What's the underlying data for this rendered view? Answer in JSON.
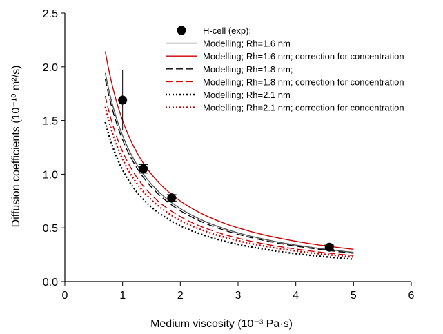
{
  "chart_data": {
    "type": "scatter",
    "xlabel": "Medium viscosity (10⁻³ Pa·s)",
    "ylabel": "Diffusion coefficients (10⁻¹⁰ m²/s)",
    "xlim": [
      0,
      6
    ],
    "ylim": [
      0,
      2.5
    ],
    "xticks": [
      "0",
      "1",
      "2",
      "3",
      "4",
      "5",
      "6"
    ],
    "yticks": [
      "0.0",
      "0.5",
      "1.0",
      "1.5",
      "2.0",
      "2.5"
    ],
    "grid": false,
    "legend_position": "top-right",
    "series": [
      {
        "name": "H-cell (exp);",
        "kind": "points",
        "color": "#000000",
        "x": [
          1.0,
          1.36,
          1.85,
          4.58
        ],
        "y": [
          1.69,
          1.05,
          0.78,
          0.32
        ],
        "yerr": [
          0.28,
          0.04,
          0.03,
          0.02
        ]
      },
      {
        "name": "Modelling; Rh=1.6 nm",
        "kind": "curve",
        "color": "#555555",
        "dash": "solid",
        "k": 1.36,
        "x_range": [
          0.7,
          5
        ]
      },
      {
        "name": "Modelling; Rh=1.6 nm; correction for concentration",
        "kind": "curve",
        "color": "#cc0000",
        "dash": "solid",
        "k": 1.5,
        "x_range": [
          0.7,
          5
        ]
      },
      {
        "name": "Modelling; Rh=1.8 nm;",
        "kind": "curve",
        "color": "#000000",
        "dash": "dashed",
        "k": 1.32,
        "x_range": [
          0.7,
          5
        ]
      },
      {
        "name": "Modelling; Rh=1.8 nm; correction for concentration",
        "kind": "curve",
        "color": "#cc0000",
        "dash": "dashed",
        "k": 1.21,
        "x_range": [
          0.7,
          5
        ]
      },
      {
        "name": "Modelling; Rh=2.1 nm",
        "kind": "curve",
        "color": "#000000",
        "dash": "dotted",
        "k": 1.04,
        "x_range": [
          0.7,
          5
        ]
      },
      {
        "name": "Modelling; Rh=2.1 nm; correction for concentration",
        "kind": "curve",
        "color": "#cc0000",
        "dash": "dotted",
        "k": 1.14,
        "x_range": [
          0.7,
          5
        ]
      }
    ]
  }
}
